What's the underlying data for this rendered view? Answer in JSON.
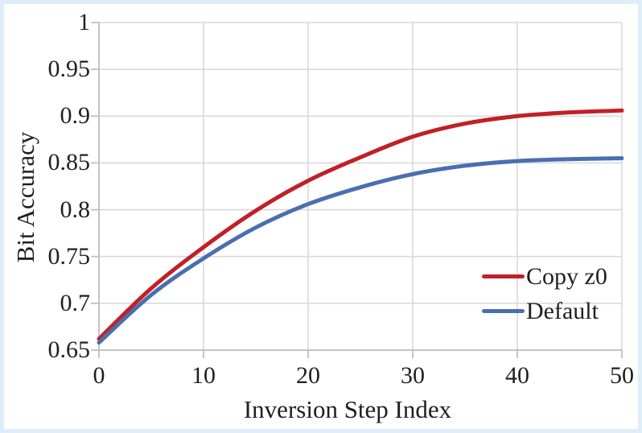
{
  "figure": {
    "background_color": "#ffffff",
    "frame_color": "#ddeef8",
    "text_color": "#1f1f1f"
  },
  "chart_data": {
    "type": "line",
    "title": "",
    "xlabel": "Inversion Step Index",
    "ylabel": "Bit Accuracy",
    "xlim": [
      0,
      50
    ],
    "ylim": [
      0.65,
      1.0
    ],
    "grid": true,
    "grid_color": "#d9d9d9",
    "axis_color": "#bfbfbf",
    "legend_position": "lower right",
    "xticks": {
      "values": [
        0,
        10,
        20,
        30,
        40,
        50
      ],
      "labels": [
        "0",
        "10",
        "20",
        "30",
        "40",
        "50"
      ]
    },
    "yticks": {
      "values": [
        0.65,
        0.7,
        0.75,
        0.8,
        0.85,
        0.9,
        0.95,
        1.0
      ],
      "labels": [
        "0.65",
        "0.7",
        "0.75",
        "0.8",
        "0.85",
        "0.9",
        "0.95",
        "1"
      ]
    },
    "x": [
      0,
      5,
      10,
      15,
      20,
      25,
      30,
      35,
      40,
      45,
      50
    ],
    "series": [
      {
        "name": "Copy z0",
        "color": "#c02026",
        "values": [
          0.662,
          0.716,
          0.76,
          0.799,
          0.831,
          0.856,
          0.878,
          0.892,
          0.9,
          0.904,
          0.906
        ]
      },
      {
        "name": "Default",
        "color": "#4a6fb0",
        "values": [
          0.658,
          0.709,
          0.748,
          0.781,
          0.806,
          0.824,
          0.838,
          0.847,
          0.852,
          0.854,
          0.855
        ]
      }
    ]
  }
}
